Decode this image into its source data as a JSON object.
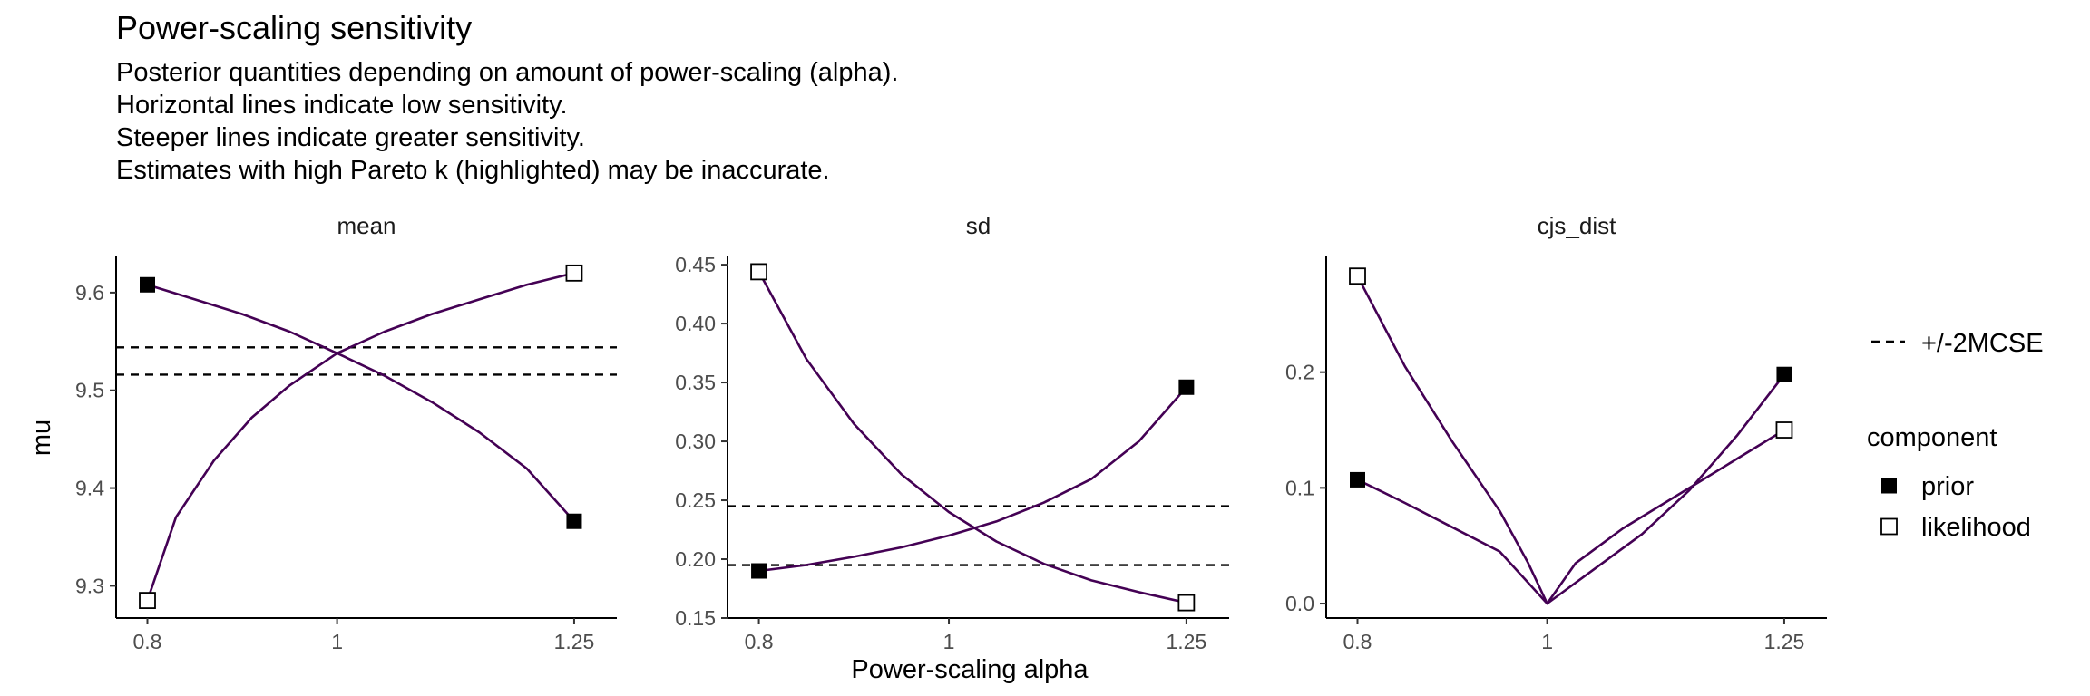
{
  "title": "Power-scaling sensitivity",
  "subtitle": [
    "Posterior quantities depending on amount of power-scaling (alpha).",
    "Horizontal lines indicate low sensitivity.",
    "Steeper lines indicate greater sensitivity.",
    "Estimates with high Pareto k (highlighted) may be inaccurate."
  ],
  "colors": {
    "line": "#440154",
    "axis": "#000000",
    "tick_text": "#4d4d4d"
  },
  "chart_data": {
    "type": "line",
    "xlabel": "Power-scaling alpha",
    "ylabel": "mu",
    "legend": {
      "position": "right",
      "mcse_label": "+/-2MCSE",
      "component_title": "component",
      "items": [
        {
          "name": "prior",
          "marker": "filled-square"
        },
        {
          "name": "likelihood",
          "marker": "open-square"
        }
      ]
    },
    "panels": [
      {
        "name": "mean",
        "xlim": [
          0.767,
          1.295
        ],
        "ylim": [
          9.267,
          9.637
        ],
        "x_ticks": [
          {
            "v": 0.8,
            "label": "0.8"
          },
          {
            "v": 1,
            "label": "1"
          },
          {
            "v": 1.25,
            "label": "1.25"
          }
        ],
        "y_ticks": [
          {
            "v": 9.3,
            "label": "9.3"
          },
          {
            "v": 9.4,
            "label": "9.4"
          },
          {
            "v": 9.5,
            "label": "9.5"
          },
          {
            "v": 9.6,
            "label": "9.6"
          }
        ],
        "mcse_lines": [
          9.516,
          9.544
        ],
        "series": [
          {
            "name": "prior",
            "x": [
              0.8,
              0.85,
              0.9,
              0.95,
              1.0,
              1.05,
              1.1,
              1.15,
              1.2,
              1.25
            ],
            "y": [
              9.608,
              9.593,
              9.578,
              9.56,
              9.538,
              9.515,
              9.488,
              9.457,
              9.42,
              9.366
            ]
          },
          {
            "name": "likelihood",
            "x": [
              0.8,
              0.83,
              0.87,
              0.91,
              0.95,
              1.0,
              1.05,
              1.1,
              1.15,
              1.2,
              1.25
            ],
            "y": [
              9.285,
              9.37,
              9.428,
              9.472,
              9.505,
              9.538,
              9.56,
              9.578,
              9.593,
              9.608,
              9.62
            ]
          }
        ]
      },
      {
        "name": "sd",
        "xlim": [
          0.767,
          1.295
        ],
        "ylim": [
          0.15,
          0.457
        ],
        "x_ticks": [
          {
            "v": 0.8,
            "label": "0.8"
          },
          {
            "v": 1,
            "label": "1"
          },
          {
            "v": 1.25,
            "label": "1.25"
          }
        ],
        "y_ticks": [
          {
            "v": 0.15,
            "label": "0.15"
          },
          {
            "v": 0.2,
            "label": "0.20"
          },
          {
            "v": 0.25,
            "label": "0.25"
          },
          {
            "v": 0.3,
            "label": "0.30"
          },
          {
            "v": 0.35,
            "label": "0.35"
          },
          {
            "v": 0.4,
            "label": "0.40"
          },
          {
            "v": 0.45,
            "label": "0.45"
          }
        ],
        "mcse_lines": [
          0.195,
          0.245
        ],
        "series": [
          {
            "name": "prior",
            "x": [
              0.8,
              0.85,
              0.9,
              0.95,
              1.0,
              1.05,
              1.1,
              1.15,
              1.2,
              1.25
            ],
            "y": [
              0.19,
              0.195,
              0.202,
              0.21,
              0.22,
              0.232,
              0.248,
              0.268,
              0.3,
              0.346
            ]
          },
          {
            "name": "likelihood",
            "x": [
              0.8,
              0.85,
              0.9,
              0.95,
              1.0,
              1.05,
              1.1,
              1.15,
              1.2,
              1.25
            ],
            "y": [
              0.444,
              0.37,
              0.315,
              0.272,
              0.24,
              0.215,
              0.196,
              0.182,
              0.172,
              0.163
            ]
          }
        ]
      },
      {
        "name": "cjs_dist",
        "xlim": [
          0.767,
          1.295
        ],
        "ylim": [
          -0.0125,
          0.3
        ],
        "x_ticks": [
          {
            "v": 0.8,
            "label": "0.8"
          },
          {
            "v": 1,
            "label": "1"
          },
          {
            "v": 1.25,
            "label": "1.25"
          }
        ],
        "y_ticks": [
          {
            "v": 0,
            "label": "0.0"
          },
          {
            "v": 0.1,
            "label": "0.1"
          },
          {
            "v": 0.2,
            "label": "0.2"
          }
        ],
        "mcse_lines": [],
        "series": [
          {
            "name": "prior",
            "x": [
              0.8,
              0.85,
              0.9,
              0.95,
              1.0,
              1.05,
              1.1,
              1.15,
              1.2,
              1.25
            ],
            "y": [
              0.107,
              0.087,
              0.066,
              0.045,
              0.0,
              0.03,
              0.06,
              0.098,
              0.145,
              0.198
            ]
          },
          {
            "name": "likelihood",
            "x": [
              0.8,
              0.85,
              0.9,
              0.95,
              0.98,
              1.0,
              1.03,
              1.08,
              1.15,
              1.2,
              1.25
            ],
            "y": [
              0.283,
              0.205,
              0.14,
              0.08,
              0.035,
              0.0,
              0.035,
              0.065,
              0.1,
              0.125,
              0.15
            ]
          }
        ]
      }
    ]
  }
}
